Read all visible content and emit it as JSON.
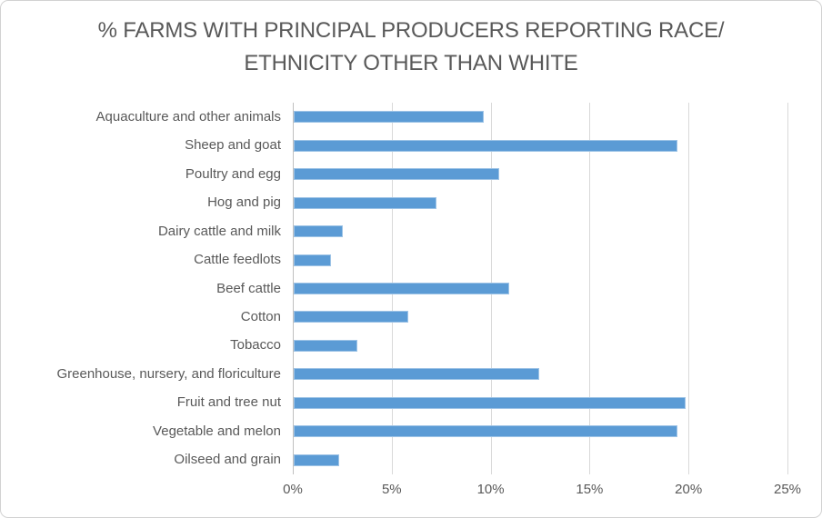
{
  "chart_data": {
    "type": "bar",
    "orientation": "horizontal",
    "title": "% FARMS WITH PRINCIPAL PRODUCERS REPORTING RACE/ETHNICITY OTHER THAN WHITE",
    "title_lines": [
      "% FARMS WITH PRINCIPAL PRODUCERS REPORTING RACE/",
      "ETHNICITY OTHER THAN WHITE"
    ],
    "categories": [
      "Aquaculture and other animals",
      "Sheep and goat",
      "Poultry and egg",
      "Hog and pig",
      "Dairy cattle and milk",
      "Cattle feedlots",
      "Beef cattle",
      "Cotton",
      "Tobacco",
      "Greenhouse, nursery, and floriculture",
      "Fruit and tree nut",
      "Vegetable and melon",
      "Oilseed and grain"
    ],
    "values": [
      9.6,
      19.4,
      10.4,
      7.2,
      2.5,
      1.9,
      10.9,
      5.8,
      3.2,
      12.4,
      19.8,
      19.4,
      2.3
    ],
    "x_ticks": [
      "0%",
      "5%",
      "10%",
      "15%",
      "20%",
      "25%"
    ],
    "x_tick_values": [
      0,
      5,
      10,
      15,
      20,
      25
    ],
    "xlim": [
      0,
      25
    ],
    "xlabel": "",
    "ylabel": "",
    "grid": true,
    "legend": false,
    "colors": {
      "bar_fill": "#5b9bd5",
      "bar_edge": "#9dc3e6",
      "gridline": "#d9d9d9",
      "axis_line": "#bfbfbf",
      "text": "#595959",
      "card_border": "#d2d2d2",
      "background": "#ffffff"
    }
  }
}
